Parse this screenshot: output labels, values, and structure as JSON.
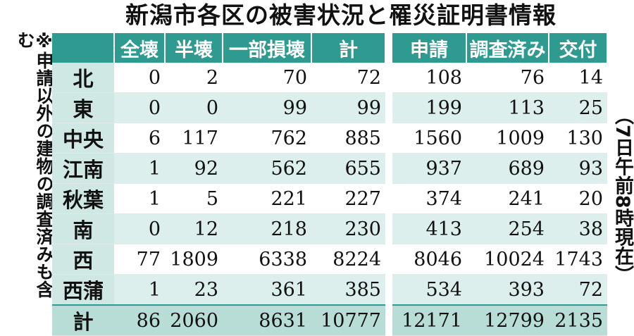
{
  "title": "新潟市各区の被害状況と罹災証明書情報",
  "note": "※申請以外の建物の調査済みも含む",
  "date_note": "（7日午前8時現在）",
  "damage_headers": [
    "全壊",
    "半壊",
    "一部損壊",
    "計"
  ],
  "cert_headers": [
    "申請",
    "調査済み",
    "交付"
  ],
  "rows": [
    {
      "ward": "北",
      "damage": [
        "0",
        "2",
        "70",
        "72"
      ],
      "cert": [
        "108",
        "76",
        "14"
      ]
    },
    {
      "ward": "東",
      "damage": [
        "0",
        "0",
        "99",
        "99"
      ],
      "cert": [
        "199",
        "113",
        "25"
      ]
    },
    {
      "ward": "中央",
      "damage": [
        "6",
        "117",
        "762",
        "885"
      ],
      "cert": [
        "1560",
        "1009",
        "130"
      ]
    },
    {
      "ward": "江南",
      "damage": [
        "1",
        "92",
        "562",
        "655"
      ],
      "cert": [
        "937",
        "689",
        "93"
      ]
    },
    {
      "ward": "秋葉",
      "damage": [
        "1",
        "5",
        "221",
        "227"
      ],
      "cert": [
        "374",
        "241",
        "20"
      ]
    },
    {
      "ward": "南",
      "damage": [
        "0",
        "12",
        "218",
        "230"
      ],
      "cert": [
        "413",
        "254",
        "38"
      ]
    },
    {
      "ward": "西",
      "damage": [
        "77",
        "1809",
        "6338",
        "8224"
      ],
      "cert": [
        "8046",
        "10024",
        "1743"
      ]
    },
    {
      "ward": "西蒲",
      "damage": [
        "1",
        "23",
        "361",
        "385"
      ],
      "cert": [
        "534",
        "393",
        "72"
      ]
    }
  ],
  "total": {
    "ward": "計",
    "damage": [
      "86",
      "2060",
      "8631",
      "10777"
    ],
    "cert": [
      "12171",
      "12799",
      "2135"
    ]
  }
}
